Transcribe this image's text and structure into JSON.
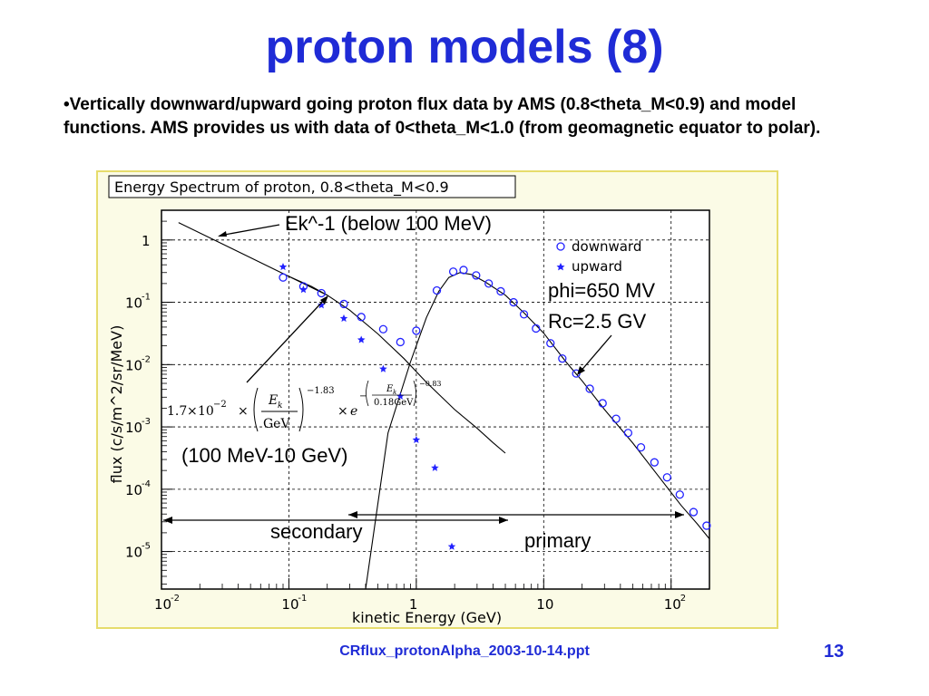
{
  "slide": {
    "title": "proton models (8)",
    "bullet": "•Vertically downward/upward going proton flux data by AMS (0.8<theta_M<0.9) and model functions. AMS provides us with data of 0<theta_M<1.0 (from geomagnetic equator to polar).",
    "footer": "CRflux_protonAlpha_2003-10-14.ppt",
    "page_number": "13"
  },
  "chart_data": {
    "type": "scatter",
    "title": "Energy Spectrum of proton, 0.8<theta_M<0.9",
    "xlabel": "kinetic Energy (GeV)",
    "ylabel": "flux (c/s/m^2/sr/MeV)",
    "xscale": "log",
    "yscale": "log",
    "xlim": [
      0.01,
      200
    ],
    "ylim": [
      2.5e-06,
      3
    ],
    "x_ticks": [
      {
        "value": 0.01,
        "label": "10",
        "exp": "-2"
      },
      {
        "value": 0.1,
        "label": "10",
        "exp": "-1"
      },
      {
        "value": 1,
        "label": "1",
        "exp": ""
      },
      {
        "value": 10,
        "label": "10",
        "exp": ""
      },
      {
        "value": 100,
        "label": "10",
        "exp": "2"
      }
    ],
    "y_ticks": [
      {
        "value": 1,
        "label": "1",
        "exp": ""
      },
      {
        "value": 0.1,
        "label": "10",
        "exp": "-1"
      },
      {
        "value": 0.01,
        "label": "10",
        "exp": "-2"
      },
      {
        "value": 0.001,
        "label": "10",
        "exp": "-3"
      },
      {
        "value": 0.0001,
        "label": "10",
        "exp": "-4"
      },
      {
        "value": 1e-05,
        "label": "10",
        "exp": "-5"
      }
    ],
    "grid": true,
    "legend": {
      "position": "top-right"
    },
    "series": [
      {
        "name": "downward",
        "marker": "open-circle",
        "color": "#2222ff",
        "points": [
          [
            0.09,
            0.25
          ],
          [
            0.13,
            0.18
          ],
          [
            0.18,
            0.14
          ],
          [
            0.27,
            0.094
          ],
          [
            0.37,
            0.058
          ],
          [
            0.55,
            0.037
          ],
          [
            0.75,
            0.023
          ],
          [
            1.0,
            0.035
          ],
          [
            1.45,
            0.155
          ],
          [
            1.95,
            0.31
          ],
          [
            2.35,
            0.33
          ],
          [
            2.95,
            0.27
          ],
          [
            3.7,
            0.2
          ],
          [
            4.6,
            0.15
          ],
          [
            5.8,
            0.1
          ],
          [
            7.0,
            0.064
          ],
          [
            8.7,
            0.038
          ],
          [
            11.3,
            0.022
          ],
          [
            14.0,
            0.0125
          ],
          [
            18.0,
            0.0072
          ],
          [
            23.0,
            0.0041
          ],
          [
            29.0,
            0.0024
          ],
          [
            37.0,
            0.00135
          ],
          [
            46.0,
            0.0008
          ],
          [
            58.0,
            0.00047
          ],
          [
            74.0,
            0.00027
          ],
          [
            93.0,
            0.000155
          ],
          [
            117.0,
            8.2e-05
          ],
          [
            150.0,
            4.3e-05
          ],
          [
            190.0,
            2.6e-05
          ]
        ]
      },
      {
        "name": "upward",
        "marker": "filled-star",
        "color": "#2222ff",
        "points": [
          [
            0.09,
            0.37
          ],
          [
            0.13,
            0.16
          ],
          [
            0.18,
            0.09
          ],
          [
            0.27,
            0.055
          ],
          [
            0.37,
            0.025
          ],
          [
            0.55,
            0.0085
          ],
          [
            0.75,
            0.0031
          ],
          [
            1.0,
            0.00062
          ],
          [
            1.4,
            0.00022
          ],
          [
            1.9,
            1.2e-05
          ]
        ]
      },
      {
        "name": "Ek^-1 (below 100 MeV)",
        "style": "line",
        "color": "#000000",
        "points": [
          [
            0.0136,
            1.9
          ],
          [
            0.1,
            0.26
          ],
          [
            0.2,
            0.13
          ]
        ]
      },
      {
        "name": "(100 MeV-10 GeV)",
        "style": "line",
        "color": "#000000",
        "points": [
          [
            0.1,
            0.26
          ],
          [
            0.15,
            0.18
          ],
          [
            0.2,
            0.13
          ],
          [
            0.3,
            0.075
          ],
          [
            0.5,
            0.031
          ],
          [
            0.8,
            0.0125
          ],
          [
            1.2,
            0.0052
          ],
          [
            2.0,
            0.0019
          ],
          [
            3.0,
            0.00095
          ],
          [
            4.0,
            0.00056
          ],
          [
            5.0,
            0.00038
          ]
        ]
      },
      {
        "name": "phi=650 MV Rc=2.5 GV",
        "style": "line",
        "color": "#000000",
        "points": [
          [
            0.4,
            2.5e-06
          ],
          [
            0.6,
            0.0008
          ],
          [
            0.9,
            0.011
          ],
          [
            1.2,
            0.057
          ],
          [
            1.5,
            0.15
          ],
          [
            1.8,
            0.25
          ],
          [
            2.2,
            0.3
          ],
          [
            2.7,
            0.28
          ],
          [
            3.5,
            0.21
          ],
          [
            5.0,
            0.13
          ],
          [
            7.0,
            0.068
          ],
          [
            10.0,
            0.032
          ],
          [
            15.0,
            0.011
          ],
          [
            20.0,
            0.0055
          ],
          [
            30.0,
            0.0019
          ],
          [
            50.0,
            0.00055
          ],
          [
            80.0,
            0.00016
          ],
          [
            120.0,
            5.5e-05
          ],
          [
            160.0,
            2.8e-05
          ],
          [
            200.0,
            1.6e-05
          ]
        ]
      }
    ],
    "annotations": {
      "ek_label": "Ek^-1 (below 100 MeV)",
      "phi_label": "phi=650 MV",
      "rc_label": "Rc=2.5 GV",
      "mid_label": "(100 MeV-10 GeV)",
      "secondary_label": "secondary",
      "primary_label": "primary",
      "formula": {
        "coef": "1.7",
        "times": "×",
        "base": "10",
        "coef_exp": "−2",
        "num": "E",
        "num_sub": "k",
        "den": "GeV",
        "exp1": "−1.83",
        "e": "e",
        "minus": "−",
        "inner_num": "E",
        "inner_sub": "k",
        "inner_den": "0.18GeV",
        "exp2": "−0.83"
      }
    }
  }
}
